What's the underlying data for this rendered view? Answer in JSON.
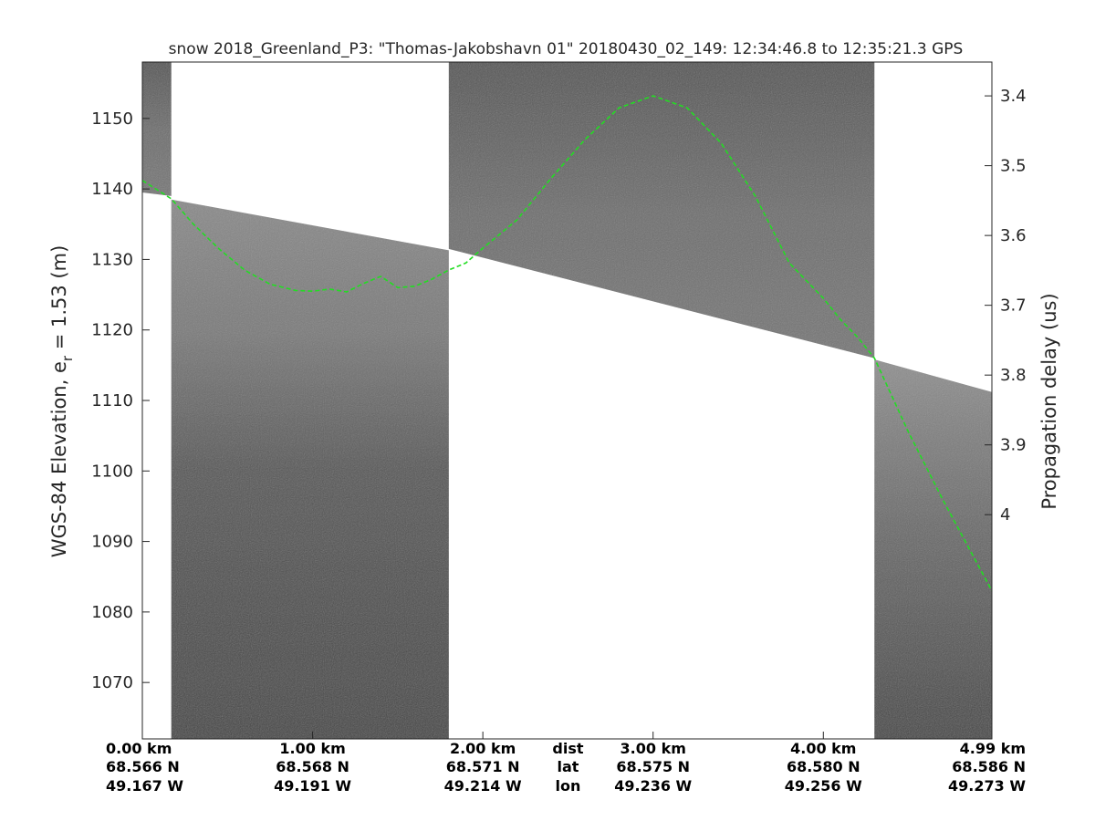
{
  "chart_data": {
    "type": "radar-echogram",
    "title": "snow 2018_Greenland_P3: \"Thomas-Jakobshavn 01\"  20180430_02_149: 12:34:46.8 to 12:35:21.3 GPS",
    "ylabel_left": {
      "base": "WGS-84 Elevation, e",
      "sub": "r",
      "rest": " = 1.53 (m)"
    },
    "ylabel_right": "Propagation delay (us)",
    "xlim_km": [
      0,
      4.99
    ],
    "ylim_m": [
      1062,
      1158
    ],
    "yticks_left": [
      1070,
      1080,
      1090,
      1100,
      1110,
      1120,
      1130,
      1140,
      1150
    ],
    "yticks_right": [
      {
        "label": "3.4",
        "elevation": 1153.2
      },
      {
        "label": "3.5",
        "elevation": 1143.3
      },
      {
        "label": "3.6",
        "elevation": 1133.4
      },
      {
        "label": "3.7",
        "elevation": 1123.5
      },
      {
        "label": "3.8",
        "elevation": 1113.6
      },
      {
        "label": "3.9",
        "elevation": 1103.7
      },
      {
        "label": "4",
        "elevation": 1093.8
      }
    ],
    "bottom_row_label": {
      "dist": "dist",
      "lat": "lat",
      "lon": "lon"
    },
    "bottom_columns": [
      {
        "x_km": 0.0,
        "dist": "0.00 km",
        "lat": "68.566 N",
        "lon": "49.167 W"
      },
      {
        "x_km": 1.0,
        "dist": "1.00 km",
        "lat": "68.568 N",
        "lon": "49.191 W"
      },
      {
        "x_km": 2.0,
        "dist": "2.00 km",
        "lat": "68.571 N",
        "lon": "49.214 W"
      },
      {
        "x_km": 3.0,
        "dist": "3.00 km",
        "lat": "68.575 N",
        "lon": "49.236 W"
      },
      {
        "x_km": 4.0,
        "dist": "4.00 km",
        "lat": "68.580 N",
        "lon": "49.256 W"
      },
      {
        "x_km": 4.99,
        "dist": "4.99 km",
        "lat": "68.586 N",
        "lon": "49.273 W"
      }
    ],
    "surface_series": {
      "name": "surface",
      "color": "#22dd22",
      "x_km": [
        0.0,
        0.17,
        0.3,
        0.45,
        0.6,
        0.75,
        0.9,
        1.0,
        1.1,
        1.2,
        1.3,
        1.4,
        1.5,
        1.6,
        1.7,
        1.8,
        1.9,
        2.0,
        2.2,
        2.4,
        2.6,
        2.8,
        3.0,
        3.2,
        3.4,
        3.6,
        3.8,
        4.0,
        4.1,
        4.2,
        4.3,
        4.5,
        4.7,
        4.99
      ],
      "elevation_m": [
        1141.2,
        1138.6,
        1135.0,
        1131.5,
        1128.5,
        1126.5,
        1125.6,
        1125.5,
        1125.8,
        1125.4,
        1126.6,
        1127.6,
        1126.0,
        1126.2,
        1127.2,
        1128.5,
        1129.5,
        1131.6,
        1135.6,
        1141.5,
        1147.0,
        1151.5,
        1153.2,
        1151.5,
        1146.5,
        1139.0,
        1129.5,
        1124.5,
        1121.5,
        1119.0,
        1116.0,
        1105.5,
        1096.0,
        1083.0
      ]
    },
    "data_columns": [
      {
        "x_km": [
          0.0,
          0.17
        ],
        "top_elevation_m": [
          1158,
          1158
        ],
        "bottom_elevation_m": [
          1139.5,
          1139.0
        ]
      },
      {
        "x_km": [
          0.17,
          1.8
        ],
        "top_elevation_m": [
          1138.5,
          1131.3
        ],
        "bottom_elevation_m": [
          1062,
          1062
        ]
      },
      {
        "x_km": [
          1.8,
          4.3
        ],
        "top_elevation_m": [
          1158,
          1158
        ],
        "bottom_elevation_m": [
          1131.5,
          1116.0
        ]
      },
      {
        "x_km": [
          4.3,
          4.99
        ],
        "top_elevation_m": [
          1115.8,
          1111.2
        ],
        "bottom_elevation_m": [
          1062,
          1062
        ]
      }
    ],
    "grid": false
  }
}
